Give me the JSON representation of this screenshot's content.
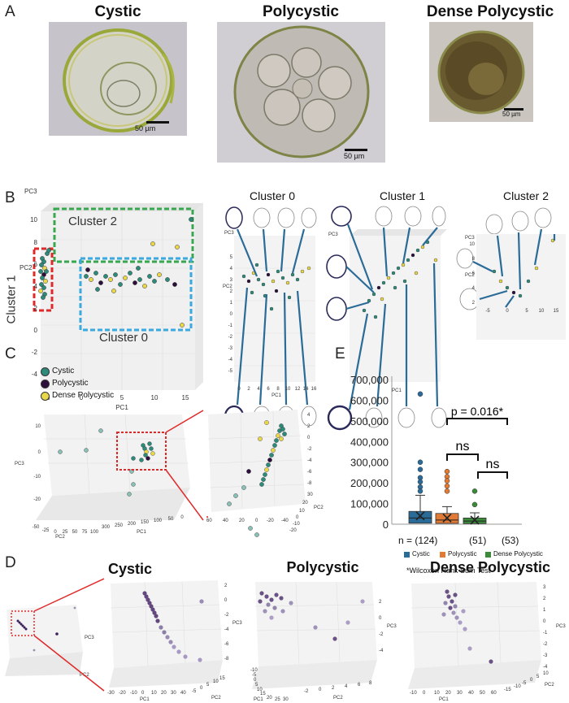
{
  "panel_a": {
    "letter": "A",
    "titles": [
      "Cystic",
      "Polycystic",
      "Dense Polycystic"
    ],
    "scale_bar": "50 µm"
  },
  "panel_b": {
    "letter": "B",
    "axes": {
      "pc1": "PC1",
      "pc2": "PC2",
      "pc3": "PC3"
    },
    "cluster_labels": [
      "Cluster 2",
      "Cluster 1",
      "Cluster 0"
    ],
    "cluster_titles": [
      "Cluster 0",
      "Cluster 1",
      "Cluster 2"
    ],
    "y_ticks": [
      "10",
      "8",
      "6",
      "4",
      "2",
      "0",
      "-2",
      "-4"
    ],
    "x_ticks": [
      "-5",
      "0",
      "5",
      "10",
      "15"
    ],
    "c0_y_ticks": [
      "5",
      "4",
      "3",
      "2",
      "1",
      "0",
      "-1",
      "-2",
      "-3",
      "-4",
      "-5"
    ],
    "c0_x_ticks": [
      "0",
      "2",
      "4",
      "6",
      "8",
      "10",
      "12",
      "14",
      "16"
    ],
    "c2_y_ticks": [
      "10",
      "8",
      "6",
      "4",
      "2"
    ],
    "c2_x_ticks": [
      "-5",
      "0",
      "5",
      "10",
      "15"
    ]
  },
  "panel_c": {
    "letter": "C",
    "legend": [
      "Cystic",
      "Polycystic",
      "Dense Polycystic"
    ],
    "colors": {
      "cystic": "#2e8b7a",
      "polycystic": "#2b0f3a",
      "dense": "#e8d84a"
    },
    "z_ticks": [
      "10",
      "0",
      "-10",
      "-20"
    ],
    "pc2_ticks": [
      "-50",
      "-25",
      "0",
      "25",
      "50",
      "75",
      "100"
    ],
    "pc1_ticks": [
      "300",
      "250",
      "200",
      "150",
      "100",
      "50",
      "0"
    ],
    "zoom_pc1_ticks": [
      "60",
      "40",
      "20",
      "0",
      "-20",
      "-40"
    ],
    "zoom_pc2_ticks": [
      "30",
      "20",
      "10",
      "0",
      "-10",
      "-20"
    ],
    "zoom_pc3_ticks": [
      "4",
      "2",
      "0",
      "-2",
      "-4",
      "-6",
      "-8"
    ]
  },
  "panel_d": {
    "letter": "D",
    "titles": [
      "Cystic",
      "Polycystic",
      "Dense Polycystic"
    ],
    "axes": {
      "pc1": "PC1",
      "pc2": "PC2",
      "pc3": "PC3"
    },
    "zoom_pc1_ticks": [
      "-30",
      "-20",
      "-10",
      "0",
      "10",
      "20",
      "30",
      "40"
    ],
    "zoom_pc2_ticks": [
      "-5",
      "0",
      "5",
      "10",
      "15"
    ],
    "zoom_pc3_ticks": [
      "2",
      "0",
      "-2",
      "-4",
      "-6",
      "-8"
    ],
    "poly_pc1_ticks": [
      "-10",
      "-5",
      "0",
      "5",
      "10",
      "15",
      "20",
      "25",
      "30"
    ],
    "poly_pc2_ticks": [
      "-2",
      "0",
      "2",
      "4",
      "6",
      "8"
    ],
    "poly_pc3_ticks": [
      "2",
      "0",
      "-2",
      "-4"
    ],
    "dense_pc1_ticks": [
      "-10",
      "0",
      "10",
      "20",
      "30",
      "40",
      "50",
      "60"
    ],
    "dense_pc2_ticks": [
      "-15",
      "-10",
      "-5",
      "0",
      "5",
      "10"
    ],
    "dense_pc3_ticks": [
      "3",
      "2",
      "1",
      "0",
      "-1",
      "-2",
      "-3",
      "-4"
    ]
  },
  "panel_e": {
    "letter": "E",
    "pvalue": "p = 0.016*",
    "ns": "ns",
    "counts": "n = (124)",
    "count2": "(51)",
    "count3": "(53)",
    "legend": [
      "Cystic",
      "Polycystic",
      "Dense Polycystic"
    ],
    "footnote": "*Wilcoxon Rank Sum Test"
  },
  "chart_data": {
    "type": "box",
    "categories": [
      "Cystic",
      "Polycystic",
      "Dense Polycystic"
    ],
    "y_ticks": [
      "700,000",
      "600,000",
      "500,000",
      "400,000",
      "300,000",
      "200,000",
      "100,000",
      "0"
    ],
    "ylim": [
      0,
      700000
    ],
    "colors": [
      "#2a6b97",
      "#e07a34",
      "#3a8a3a"
    ],
    "series": [
      {
        "name": "Cystic",
        "q1": 5000,
        "median": 30000,
        "q3": 62000,
        "mean": 40000,
        "whisker_high": 140000,
        "outliers": [
          630000,
          300000,
          265000,
          225000,
          205000,
          180000,
          160000
        ]
      },
      {
        "name": "Polycystic",
        "q1": 4000,
        "median": 20000,
        "q3": 52000,
        "mean": 30000,
        "whisker_high": 85000,
        "outliers": [
          255000,
          230000,
          210000,
          185000,
          160000
        ]
      },
      {
        "name": "Dense Polycystic",
        "q1": 3000,
        "median": 15000,
        "q3": 30000,
        "mean": 20000,
        "whisker_high": 55000,
        "outliers": [
          160000,
          95000
        ]
      }
    ]
  }
}
